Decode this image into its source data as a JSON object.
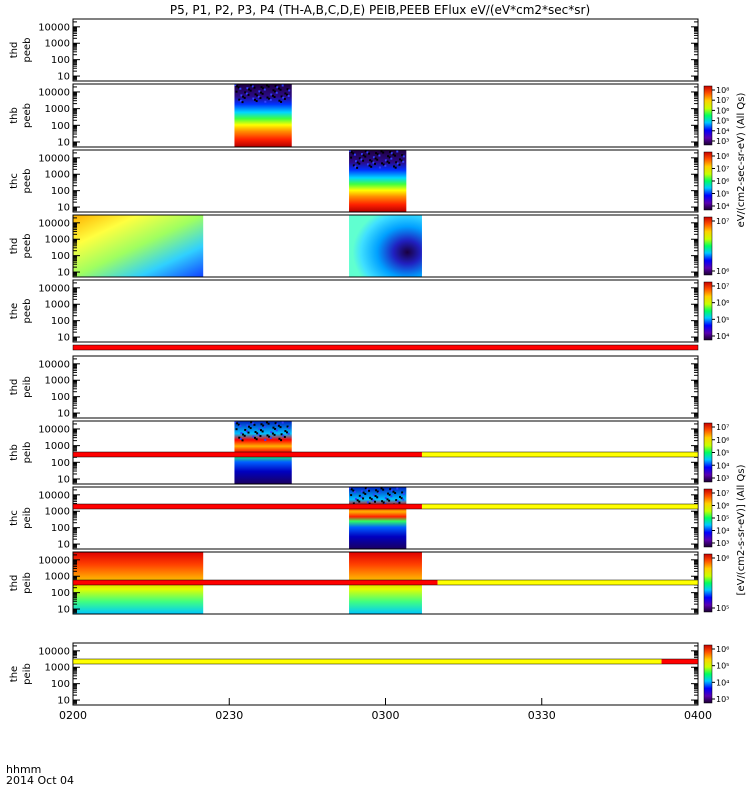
{
  "title": "P5, P1, P2, P3, P4 (TH-A,B,C,D,E) PEIB,PEEB EFlux eV/(eV*cm2*sec*sr)",
  "footer": {
    "time_label": "hhmm",
    "date_label": "2014 Oct 04"
  },
  "colorbar_labels": {
    "peeb": "eV/(cm2-sec-sr-eV) (All Qs)",
    "peib": "[eV/(cm2-s-sr-eV)] (All Qs)"
  },
  "colors": {
    "red": "#ff0000",
    "yellow": "#ffff00",
    "spec_dark": "#2a0a4a"
  },
  "chart_data": {
    "type": "heatmap",
    "x_ticks": [
      "0200",
      "0230",
      "0300",
      "0330",
      "0400"
    ],
    "x_range": [
      "02:00",
      "04:00"
    ],
    "y_scale": "log",
    "y_ticks": [
      "10",
      "100",
      "1000",
      "10000"
    ],
    "y_range_eV": [
      5,
      30000
    ],
    "panels": [
      {
        "name": "thd peeb",
        "label1": "thd",
        "label2": "peeb",
        "blocks": [],
        "cbar_ticks": []
      },
      {
        "name": "thb peeb",
        "label1": "thb",
        "label2": "peeb",
        "blocks": [
          {
            "start": "02:31",
            "end": "02:42",
            "pattern": "electron"
          }
        ],
        "cbar_ticks": [
          "10³",
          "10⁴",
          "10⁵",
          "10⁶",
          "10⁷",
          "10⁸"
        ]
      },
      {
        "name": "thc peeb",
        "label1": "thc",
        "label2": "peeb",
        "blocks": [
          {
            "start": "02:53",
            "end": "03:04",
            "pattern": "electron"
          }
        ],
        "cbar_ticks": [
          "10⁴",
          "10⁵",
          "10⁶",
          "10⁷",
          "10⁸"
        ]
      },
      {
        "name": "thd peeb",
        "label1": "thd",
        "label2": "peeb",
        "blocks": [
          {
            "start": "02:00",
            "end": "02:25",
            "pattern": "sheet"
          },
          {
            "start": "02:53",
            "end": "03:07",
            "pattern": "hole"
          }
        ],
        "cbar_ticks": [
          "10⁶",
          "10⁷"
        ]
      },
      {
        "name": "the peeb",
        "label1": "the",
        "label2": "peeb",
        "blocks": [],
        "cbar_ticks": [
          "10⁴",
          "10⁵",
          "10⁶",
          "10⁷"
        ]
      },
      {
        "name": "thd peib",
        "label1": "thd",
        "label2": "peib",
        "blocks": [],
        "cbar_ticks": []
      },
      {
        "name": "thb peib",
        "label1": "thb",
        "label2": "peib",
        "blocks": [
          {
            "start": "02:31",
            "end": "02:42",
            "pattern": "ionband"
          }
        ],
        "cbar_ticks": [
          "10³",
          "10⁴",
          "10⁵",
          "10⁶",
          "10⁷"
        ]
      },
      {
        "name": "thc peib",
        "label1": "thc",
        "label2": "peib",
        "blocks": [
          {
            "start": "02:53",
            "end": "03:04",
            "pattern": "ionband"
          }
        ],
        "cbar_ticks": [
          "10³",
          "10⁴",
          "10⁵",
          "10⁶",
          "10⁷"
        ]
      },
      {
        "name": "thd peib",
        "label1": "thd",
        "label2": "peib",
        "blocks": [
          {
            "start": "02:00",
            "end": "02:25",
            "pattern": "ionwarm"
          },
          {
            "start": "02:53",
            "end": "03:07",
            "pattern": "ionwarm"
          }
        ],
        "cbar_ticks": [
          "10⁵",
          "10⁶"
        ]
      },
      {
        "name": "the peib",
        "label1": "the",
        "label2": "peib",
        "blocks": [],
        "cbar_ticks": [
          "10³",
          "10⁴",
          "10⁵",
          "10⁶"
        ]
      }
    ],
    "mode_bars": [
      {
        "segments": [
          {
            "start": "02:00",
            "end": "04:00",
            "color": "red"
          }
        ]
      },
      {
        "segments": [
          {
            "start": "02:00",
            "end": "03:07",
            "color": "red"
          },
          {
            "start": "03:07",
            "end": "04:00",
            "color": "yellow"
          }
        ]
      },
      {
        "segments": [
          {
            "start": "02:00",
            "end": "03:07",
            "color": "red"
          },
          {
            "start": "03:07",
            "end": "04:00",
            "color": "yellow"
          }
        ]
      },
      {
        "segments": [
          {
            "start": "02:00",
            "end": "03:10",
            "color": "red"
          },
          {
            "start": "03:10",
            "end": "04:00",
            "color": "yellow"
          }
        ]
      },
      {
        "segments": [
          {
            "start": "02:00",
            "end": "03:53",
            "color": "yellow"
          },
          {
            "start": "03:53",
            "end": "04:00",
            "color": "red"
          }
        ]
      }
    ]
  }
}
